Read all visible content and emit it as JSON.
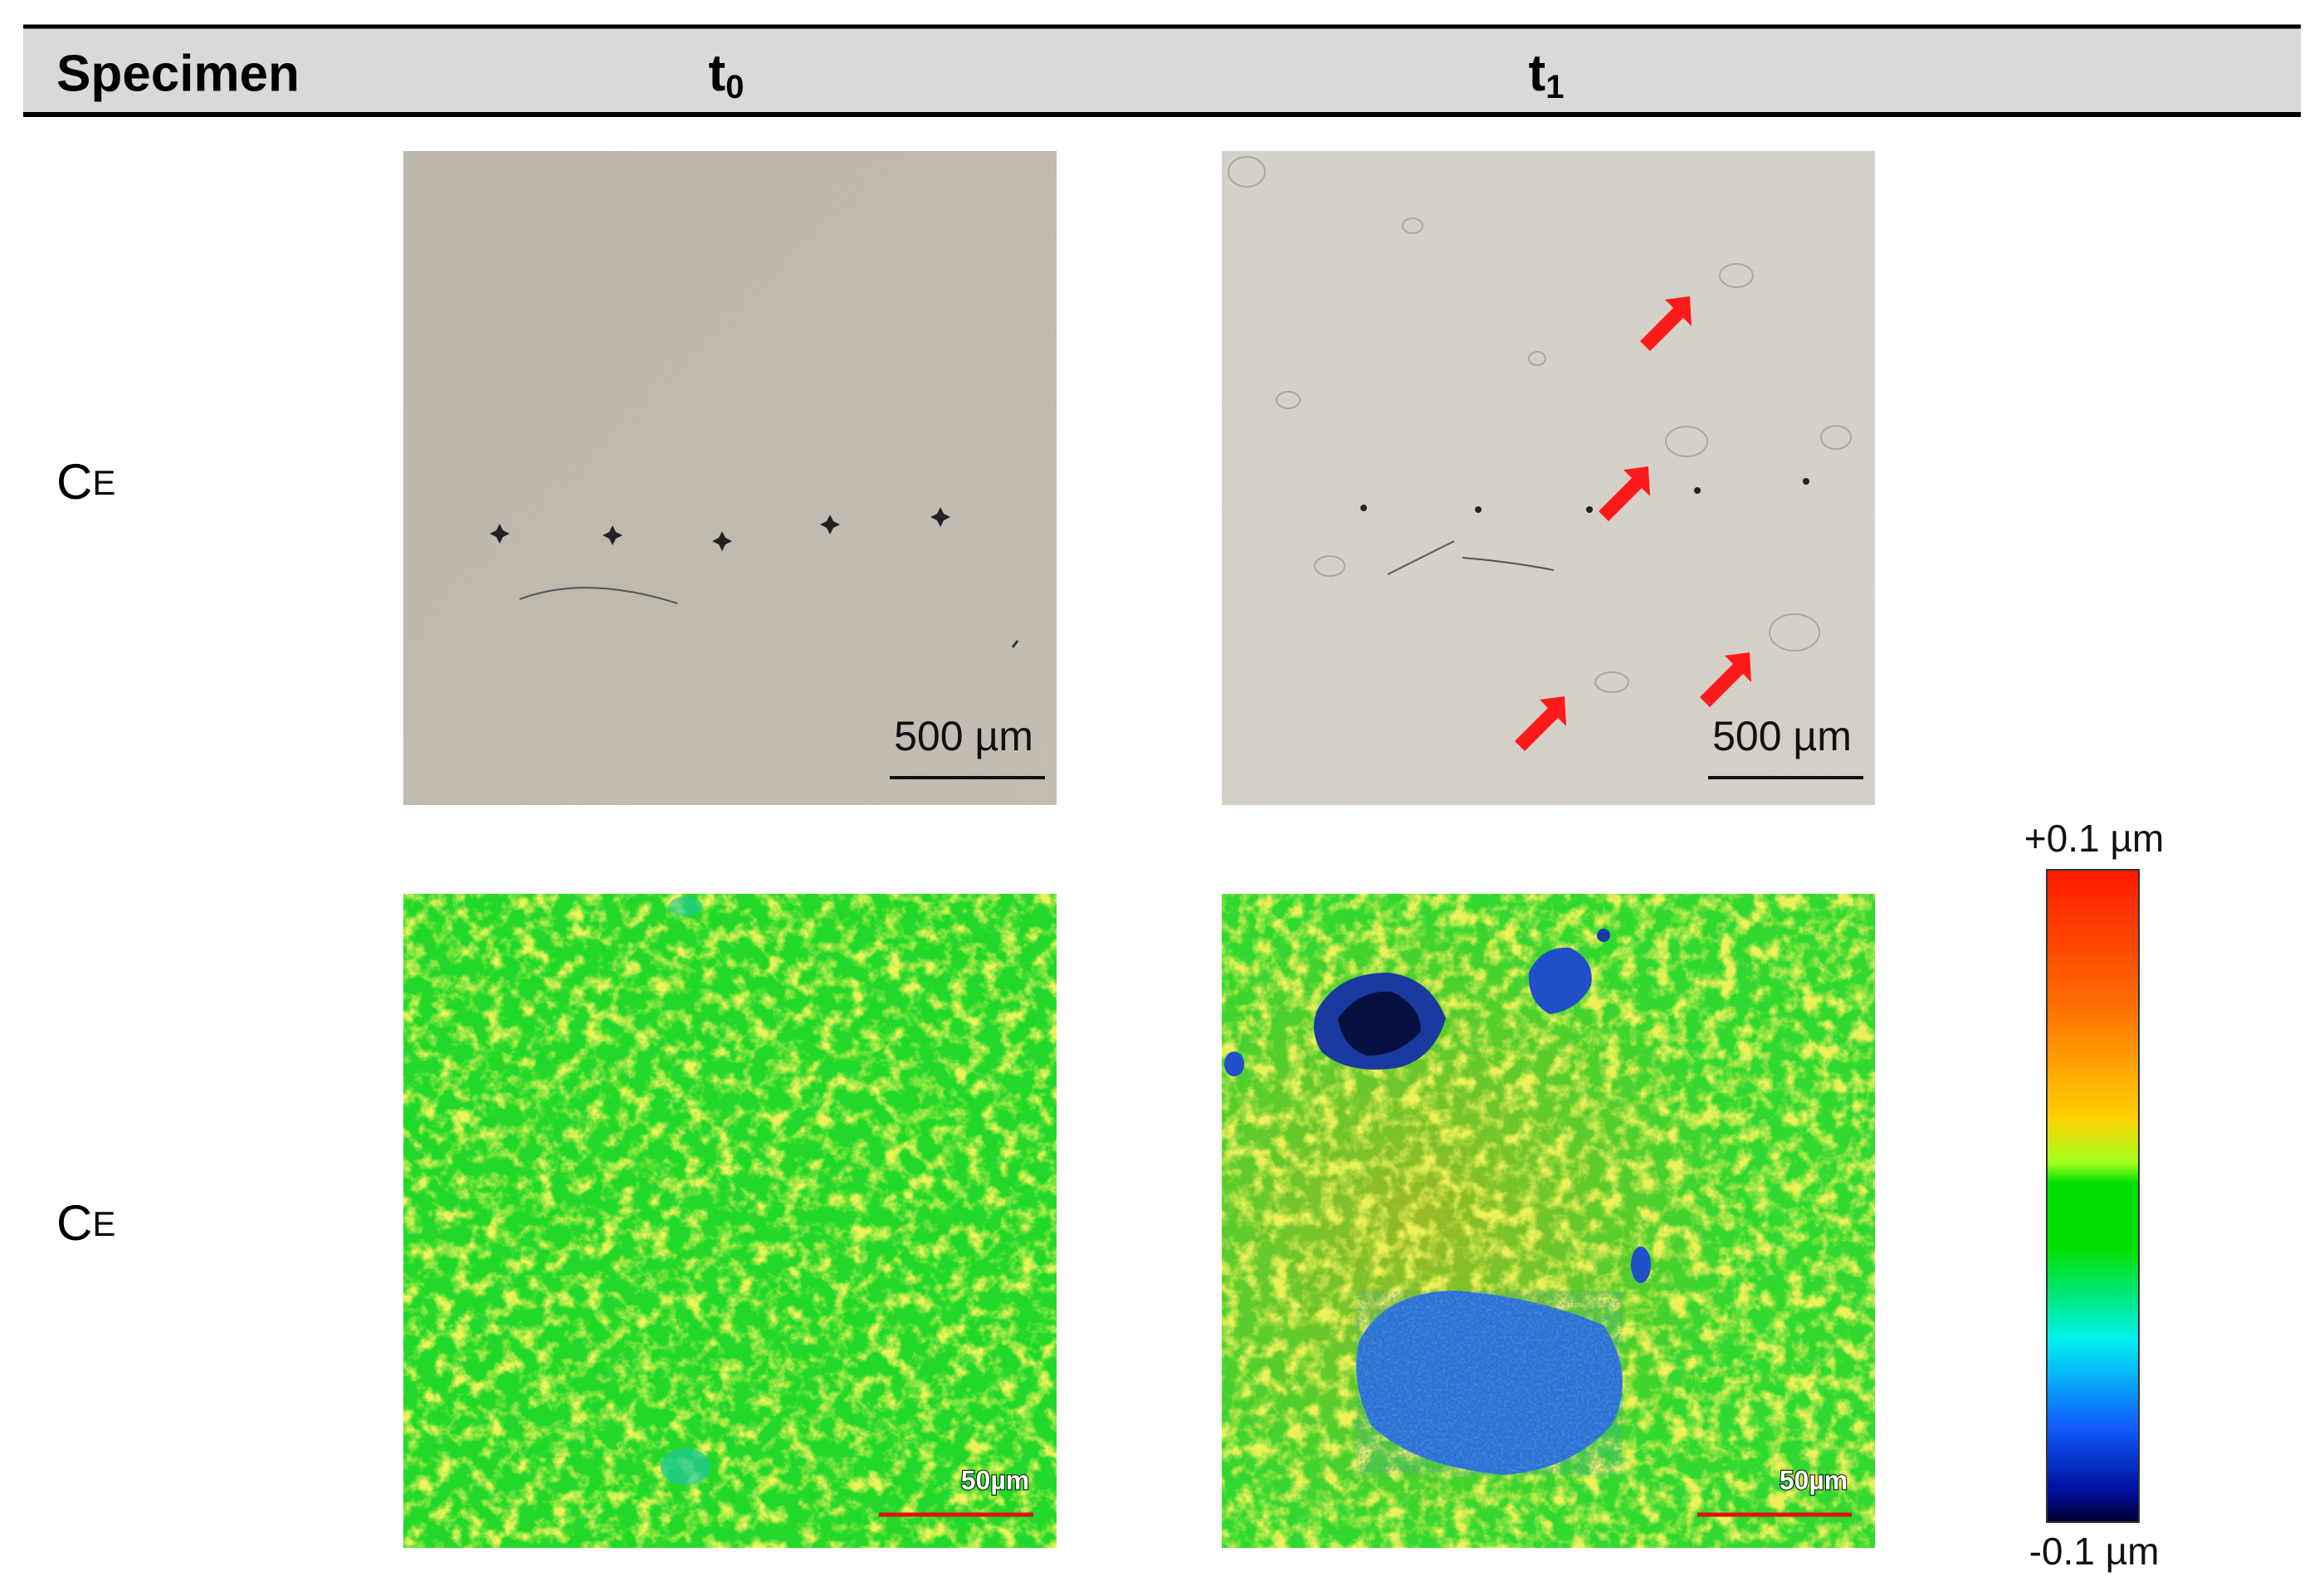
{
  "header": {
    "columns": [
      {
        "text": "Specimen"
      },
      {
        "text": "t",
        "subscript": "0"
      },
      {
        "text": "t",
        "subscript": "1"
      }
    ]
  },
  "rows": [
    {
      "specimen": {
        "text": "C",
        "small": "E"
      },
      "cells": [
        {
          "scale_bar": "500 µm"
        },
        {
          "scale_bar": "500 µm"
        }
      ]
    },
    {
      "specimen": {
        "text": "C",
        "small": "E"
      },
      "cells": [
        {
          "scale_bar": "50µm"
        },
        {
          "scale_bar": "50µm"
        }
      ]
    }
  ],
  "color_scale": {
    "max_label": "+0.1 µm",
    "min_label": "-0.1 µm"
  }
}
